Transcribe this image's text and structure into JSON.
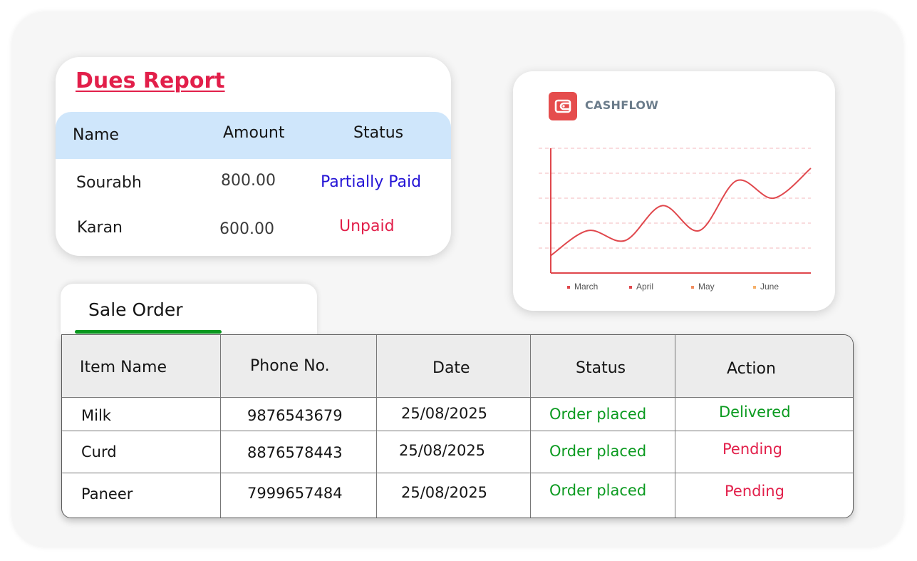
{
  "dues_report": {
    "title": "Dues Report",
    "columns": [
      "Name",
      "Amount",
      "Status"
    ],
    "rows": [
      {
        "name": "Sourabh",
        "amount": "800.00",
        "status": "Partially Paid"
      },
      {
        "name": "Karan",
        "amount": "600.00",
        "status": "Unpaid"
      }
    ],
    "colors": {
      "title": "#e21f4a",
      "header_bg": "#cfe6fb",
      "partially_paid": "#2414d6",
      "unpaid": "#e21f4a"
    }
  },
  "cashflow": {
    "logo_icon": "wallet-icon",
    "title": "CASHFLOW",
    "chart_data": {
      "type": "line",
      "title": "",
      "xlabel": "",
      "ylabel": "",
      "legend": [
        "March",
        "April",
        "May",
        "June"
      ],
      "legend_colors": [
        "#e0474c",
        "#e0474c",
        "#f08d5f",
        "#f5b06a"
      ],
      "legend_placement": "bottom",
      "grid": true,
      "gridlines": 5,
      "ylim": [
        0,
        5
      ],
      "series": [
        {
          "values": [
            0.7,
            1.7,
            1.3,
            2.7,
            1.7,
            3.7,
            3.0,
            4.2
          ]
        }
      ],
      "line_color": "#e0474c"
    }
  },
  "sale_order": {
    "tab_label": "Sale Order",
    "columns": [
      "Item Name",
      "Phone No.",
      "Date",
      "Status",
      "Action"
    ],
    "rows": [
      {
        "item": "Milk",
        "phone": "9876543679",
        "date": "25/08/2025",
        "status": "Order placed",
        "action": "Delivered"
      },
      {
        "item": "Curd",
        "phone": "8876578443",
        "date": "25/08/2025",
        "status": "Order placed",
        "action": "Pending"
      },
      {
        "item": "Paneer",
        "phone": "7999657484",
        "date": "25/08/2025",
        "status": "Order placed",
        "action": "Pending"
      }
    ],
    "colors": {
      "status": "#0a9a1f",
      "delivered": "#0a9a1f",
      "pending": "#e21f4a",
      "tab_underline": "#0a9a1f"
    }
  }
}
